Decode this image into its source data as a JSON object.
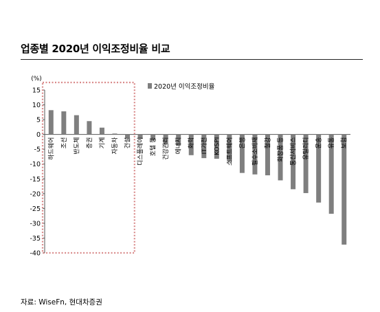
{
  "header": {
    "title": "업종별 2020년 이익조정비율 비교"
  },
  "footer": {
    "source": "자료: WiseFn, 현대차증권"
  },
  "chart_data": {
    "type": "bar",
    "unit_label": "(%)",
    "categories": [
      "하드웨어",
      "조선",
      "반도체",
      "증권",
      "기계",
      "자동차",
      "건설",
      "디스플레이",
      "호텔 등",
      "건강관리",
      "에너지",
      "화학",
      "IT가전",
      "KOSPI",
      "소프트웨어",
      "은행",
      "필수소비재",
      "철강",
      "화장품 등",
      "통신서비스",
      "유틸리티",
      "운송",
      "유통",
      "보험"
    ],
    "series": [
      {
        "name": "2020년 이익조정비율",
        "values": [
          8.2,
          7.8,
          6.5,
          4.5,
          2.3,
          0.3,
          -1.2,
          -1.5,
          -2.0,
          -3.3,
          -3.8,
          -7.0,
          -8.0,
          -8.2,
          -9.2,
          -13.0,
          -13.5,
          -13.8,
          -15.5,
          -18.5,
          -19.8,
          -23.0,
          -26.8,
          -37.2
        ]
      }
    ],
    "ylim": [
      -40,
      15
    ],
    "yticks": [
      15,
      10,
      5,
      0,
      -5,
      -10,
      -15,
      -20,
      -25,
      -30,
      -35,
      -40
    ],
    "highlight": {
      "from_category": "하드웨어",
      "to_category": "건설",
      "style": "dotted",
      "color": "#d98a8a"
    },
    "legend_position": "top-right",
    "grid": false,
    "bar_color": "#7f7f7f"
  }
}
